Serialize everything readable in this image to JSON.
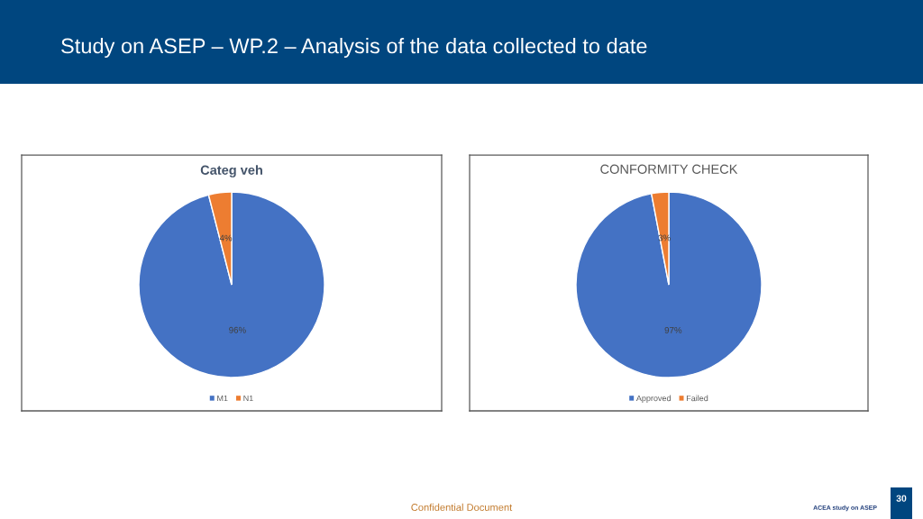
{
  "chart_data": [
    {
      "type": "pie",
      "title": "Categ veh",
      "categories": [
        "M1",
        "N1"
      ],
      "values": [
        96,
        4
      ],
      "colors": [
        "#4472c4",
        "#ed7d31"
      ],
      "value_labels": [
        "96%",
        "4%"
      ],
      "legend": "bottom",
      "annotations": [
        "Study on ASEP – WP.2 – Analysis of the data collected to date",
        "Confidential Document",
        "ACEA study on ASEP",
        "30"
      ]
    },
    {
      "type": "pie",
      "title": "CONFORMITY CHECK",
      "categories": [
        "Approved",
        "Failed"
      ],
      "values": [
        97,
        3
      ],
      "colors": [
        "#4472c4",
        "#ed7d31"
      ],
      "value_labels": [
        "97%",
        "3%"
      ],
      "legend": "bottom"
    }
  ]
}
